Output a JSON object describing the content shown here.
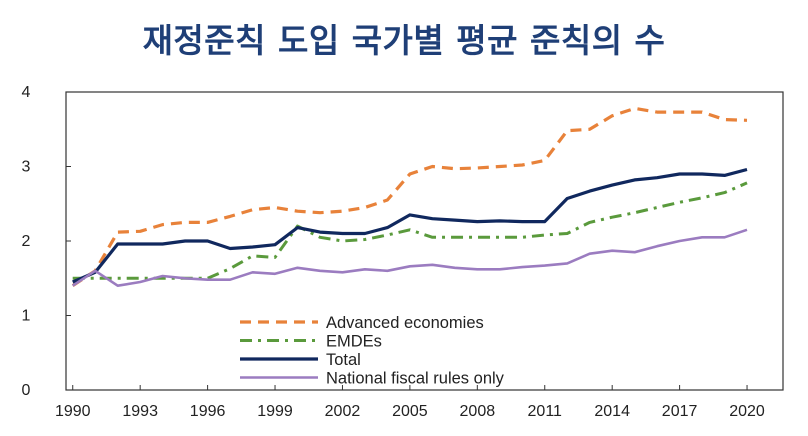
{
  "title": "재정준칙 도입 국가별 평균 준칙의 수",
  "chart_data": {
    "type": "line",
    "title": "재정준칙 도입 국가별 평균 준칙의 수",
    "xlabel": "",
    "ylabel": "",
    "x": [
      1990,
      1991,
      1992,
      1993,
      1994,
      1995,
      1996,
      1997,
      1998,
      1999,
      2000,
      2001,
      2002,
      2003,
      2004,
      2005,
      2006,
      2007,
      2008,
      2009,
      2010,
      2011,
      2012,
      2013,
      2014,
      2015,
      2016,
      2017,
      2018,
      2019,
      2020
    ],
    "x_ticks": [
      "1990",
      "1993",
      "1996",
      "1999",
      "2002",
      "2005",
      "2008",
      "2011",
      "2014",
      "2017",
      "2020"
    ],
    "y_ticks": [
      "0",
      "1",
      "2",
      "3",
      "4"
    ],
    "ylim": [
      0,
      4
    ],
    "grid": false,
    "legend_position": "bottom-center",
    "series": [
      {
        "name": "Advanced economies",
        "color": "#e8823a",
        "style": "dashed",
        "values": [
          1.4,
          1.6,
          2.12,
          2.13,
          2.22,
          2.25,
          2.25,
          2.33,
          2.42,
          2.45,
          2.4,
          2.38,
          2.4,
          2.45,
          2.55,
          2.9,
          3.0,
          2.97,
          2.98,
          3.0,
          3.02,
          3.08,
          3.48,
          3.5,
          3.68,
          3.78,
          3.73,
          3.73,
          3.73,
          3.63,
          3.62
        ]
      },
      {
        "name": "EMDEs",
        "color": "#5a9a3c",
        "style": "dashdot",
        "values": [
          1.5,
          1.5,
          1.5,
          1.5,
          1.5,
          1.5,
          1.5,
          1.63,
          1.8,
          1.78,
          2.2,
          2.05,
          2.0,
          2.02,
          2.08,
          2.15,
          2.05,
          2.05,
          2.05,
          2.05,
          2.05,
          2.08,
          2.1,
          2.25,
          2.32,
          2.38,
          2.45,
          2.52,
          2.58,
          2.65,
          2.78
        ]
      },
      {
        "name": "Total",
        "color": "#10285e",
        "style": "solid",
        "values": [
          1.45,
          1.58,
          1.96,
          1.96,
          1.96,
          2.0,
          2.0,
          1.9,
          1.92,
          1.95,
          2.18,
          2.12,
          2.1,
          2.1,
          2.18,
          2.35,
          2.3,
          2.28,
          2.26,
          2.27,
          2.26,
          2.26,
          2.57,
          2.67,
          2.75,
          2.82,
          2.85,
          2.9,
          2.9,
          2.88,
          2.96
        ]
      },
      {
        "name": "National fiscal rules only",
        "color": "#9b7cc0",
        "style": "solid",
        "values": [
          1.4,
          1.6,
          1.4,
          1.45,
          1.53,
          1.5,
          1.48,
          1.48,
          1.58,
          1.56,
          1.64,
          1.6,
          1.58,
          1.62,
          1.6,
          1.66,
          1.68,
          1.64,
          1.62,
          1.62,
          1.65,
          1.67,
          1.7,
          1.83,
          1.87,
          1.85,
          1.93,
          2.0,
          2.05,
          2.05,
          2.15
        ]
      }
    ]
  }
}
